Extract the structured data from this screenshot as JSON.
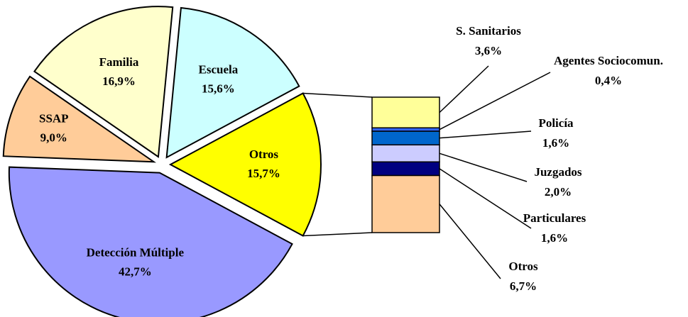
{
  "chart_data": {
    "type": "pie",
    "categories": [
      "Otros",
      "Detección Múltiple",
      "SSAP",
      "Familia",
      "Escuela"
    ],
    "values": [
      15.7,
      42.7,
      9.0,
      16.9,
      15.6
    ],
    "value_labels": [
      "15,7%",
      "42,7%",
      "9,0%",
      "16,9%",
      "15,6%"
    ],
    "colors": [
      "#ffff00",
      "#9999ff",
      "#ffcc99",
      "#ffffcc",
      "#ccffff"
    ],
    "breakdown": {
      "categories": [
        "S. Sanitarios",
        "Agentes Sociocomun.",
        "Policía",
        "Juzgados",
        "Particulares",
        "Otros"
      ],
      "values": [
        3.6,
        0.4,
        1.6,
        2.0,
        1.6,
        6.7
      ],
      "value_labels": [
        "3,6%",
        "0,4%",
        "1,6%",
        "2,0%",
        "1,6%",
        "6,7%"
      ],
      "colors": [
        "#ffff99",
        "#3366ff",
        "#0066cc",
        "#ccccff",
        "#000080",
        "#ffcc99"
      ]
    }
  }
}
